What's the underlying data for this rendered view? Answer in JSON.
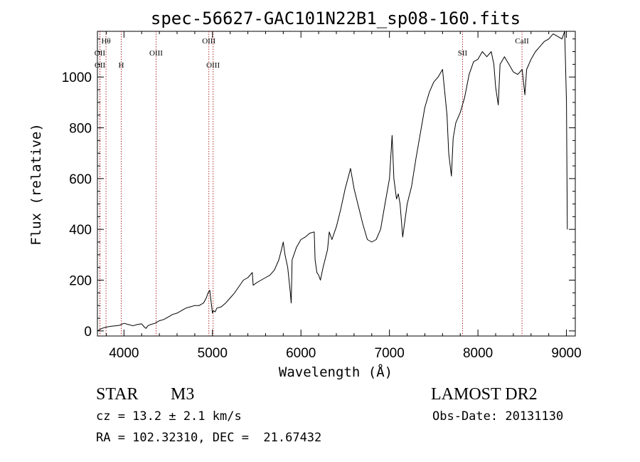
{
  "chart_data": {
    "type": "line",
    "title": "spec-56627-GAC101N22B1_sp08-160.fits",
    "xlabel": "Wavelength (Å)",
    "ylabel": "Flux (relative)",
    "xlim": [
      3700,
      9100
    ],
    "ylim": [
      -20,
      1180
    ],
    "x_ticks": [
      4000,
      5000,
      6000,
      7000,
      8000,
      9000
    ],
    "y_ticks": [
      0,
      200,
      400,
      600,
      800,
      1000
    ],
    "grid": false,
    "lines": [
      {
        "label": "Hθ",
        "x": 3797,
        "row": 0
      },
      {
        "label": "OII",
        "x": 3727,
        "row": 1
      },
      {
        "label": "OII",
        "x": 3729,
        "row": 2
      },
      {
        "label": "H",
        "x": 3969,
        "row": 2
      },
      {
        "label": "OIII",
        "x": 4363,
        "row": 1
      },
      {
        "label": "OIII",
        "x": 4959,
        "row": 0
      },
      {
        "label": "OIII",
        "x": 5007,
        "row": 2
      },
      {
        "label": "SII",
        "x": 7826,
        "row": 1
      },
      {
        "label": "CaII",
        "x": 8498,
        "row": 0
      }
    ],
    "series": [
      {
        "x": [
          3700,
          3750,
          3800,
          3850,
          3900,
          3950,
          4000,
          4050,
          4100,
          4150,
          4200,
          4230,
          4250,
          4270,
          4300,
          4350,
          4400,
          4450,
          4500,
          4550,
          4600,
          4650,
          4700,
          4750,
          4800,
          4850,
          4900,
          4930,
          4950,
          4970,
          4990,
          5000,
          5010,
          5030,
          5050,
          5100,
          5150,
          5200,
          5250,
          5300,
          5350,
          5400,
          5450,
          5460,
          5500,
          5550,
          5600,
          5650,
          5700,
          5750,
          5780,
          5800,
          5820,
          5850,
          5880,
          5890,
          5900,
          5950,
          6000,
          6050,
          6100,
          6150,
          6160,
          6180,
          6200,
          6220,
          6250,
          6300,
          6320,
          6350,
          6400,
          6450,
          6500,
          6530,
          6560,
          6600,
          6650,
          6700,
          6750,
          6800,
          6850,
          6900,
          6950,
          7000,
          7030,
          7050,
          7080,
          7100,
          7120,
          7150,
          7200,
          7250,
          7300,
          7350,
          7400,
          7450,
          7500,
          7550,
          7600,
          7650,
          7670,
          7700,
          7720,
          7750,
          7800,
          7850,
          7900,
          7950,
          8000,
          8050,
          8100,
          8150,
          8180,
          8200,
          8230,
          8250,
          8300,
          8350,
          8400,
          8450,
          8500,
          8530,
          8550,
          8600,
          8650,
          8700,
          8750,
          8800,
          8850,
          8900,
          8950,
          8980,
          9000,
          9010
        ],
        "y": [
          0,
          10,
          15,
          18,
          20,
          22,
          30,
          25,
          20,
          25,
          28,
          15,
          10,
          20,
          25,
          30,
          40,
          45,
          55,
          65,
          70,
          80,
          90,
          95,
          100,
          100,
          110,
          130,
          150,
          160,
          100,
          70,
          80,
          75,
          90,
          95,
          110,
          130,
          150,
          175,
          200,
          210,
          230,
          180,
          190,
          200,
          210,
          220,
          240,
          280,
          320,
          350,
          300,
          250,
          150,
          110,
          280,
          330,
          360,
          370,
          385,
          390,
          280,
          230,
          220,
          200,
          250,
          320,
          390,
          360,
          410,
          480,
          560,
          600,
          640,
          560,
          490,
          420,
          360,
          350,
          360,
          400,
          500,
          600,
          770,
          600,
          520,
          540,
          500,
          370,
          500,
          570,
          680,
          780,
          880,
          940,
          980,
          1000,
          1030,
          850,
          700,
          610,
          760,
          820,
          860,
          920,
          1010,
          1060,
          1070,
          1100,
          1080,
          1100,
          1050,
          960,
          890,
          1050,
          1080,
          1050,
          1020,
          1010,
          1030,
          930,
          1030,
          1070,
          1100,
          1120,
          1140,
          1150,
          1170,
          1160,
          1150,
          1180,
          900,
          400
        ]
      }
    ]
  },
  "labels": {
    "object_class": "STAR",
    "subclass": "M3",
    "survey": "LAMOST DR2",
    "cz": "cz = 13.2 ± 2.1 km/s",
    "obs_date": "Obs-Date: 20131130",
    "coords": "RA = 102.32310, DEC =  21.67432"
  }
}
